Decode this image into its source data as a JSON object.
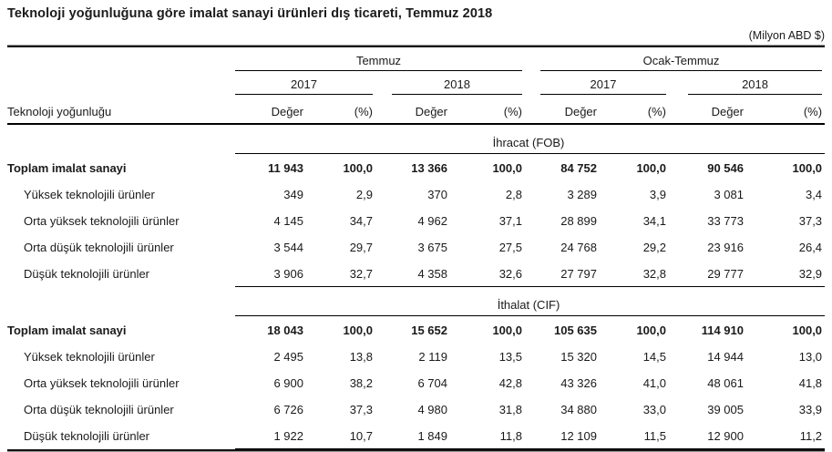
{
  "title": "Teknoloji yoğunluğuna göre imalat sanayi ürünleri dış ticareti, Temmuz 2018",
  "unit_note": "(Milyon ABD $)",
  "table": {
    "row_header": "Teknoloji yoğunluğu",
    "period_groups": [
      "Temmuz",
      "Ocak-Temmuz"
    ],
    "year_groups": [
      "2017",
      "2018",
      "2017",
      "2018"
    ],
    "measure_headers": [
      "Değer",
      "(%)",
      "Değer",
      "(%)",
      "Değer",
      "(%)",
      "Değer",
      "(%)"
    ],
    "sections": [
      {
        "name": "İhracat (FOB)",
        "rows": [
          {
            "label": "Toplam imalat sanayi",
            "bold": true,
            "values": [
              "11 943",
              "100,0",
              "13 366",
              "100,0",
              "84 752",
              "100,0",
              "90 546",
              "100,0"
            ]
          },
          {
            "label": "Yüksek teknolojili ürünler",
            "bold": false,
            "values": [
              "349",
              "2,9",
              "370",
              "2,8",
              "3 289",
              "3,9",
              "3 081",
              "3,4"
            ]
          },
          {
            "label": "Orta yüksek teknolojili ürünler",
            "bold": false,
            "values": [
              "4 145",
              "34,7",
              "4 962",
              "37,1",
              "28 899",
              "34,1",
              "33 773",
              "37,3"
            ]
          },
          {
            "label": "Orta düşük teknolojili ürünler",
            "bold": false,
            "values": [
              "3 544",
              "29,7",
              "3 675",
              "27,5",
              "24 768",
              "29,2",
              "23 916",
              "26,4"
            ]
          },
          {
            "label": "Düşük teknolojili ürünler",
            "bold": false,
            "values": [
              "3 906",
              "32,7",
              "4 358",
              "32,6",
              "27 797",
              "32,8",
              "29 777",
              "32,9"
            ]
          }
        ]
      },
      {
        "name": "İthalat (CIF)",
        "rows": [
          {
            "label": "Toplam imalat sanayi",
            "bold": true,
            "values": [
              "18 043",
              "100,0",
              "15 652",
              "100,0",
              "105 635",
              "100,0",
              "114 910",
              "100,0"
            ]
          },
          {
            "label": "Yüksek teknolojili ürünler",
            "bold": false,
            "values": [
              "2 495",
              "13,8",
              "2 119",
              "13,5",
              "15 320",
              "14,5",
              "14 944",
              "13,0"
            ]
          },
          {
            "label": "Orta yüksek teknolojili ürünler",
            "bold": false,
            "values": [
              "6 900",
              "38,2",
              "6 704",
              "42,8",
              "43 326",
              "41,0",
              "48 061",
              "41,8"
            ]
          },
          {
            "label": "Orta düşük teknolojili ürünler",
            "bold": false,
            "values": [
              "6 726",
              "37,3",
              "4 980",
              "31,8",
              "34 880",
              "33,0",
              "39 005",
              "33,9"
            ]
          },
          {
            "label": "Düşük teknolojili ürünler",
            "bold": false,
            "values": [
              "1 922",
              "10,7",
              "1 849",
              "11,8",
              "12 109",
              "11,5",
              "12 900",
              "11,2"
            ]
          }
        ]
      }
    ]
  }
}
